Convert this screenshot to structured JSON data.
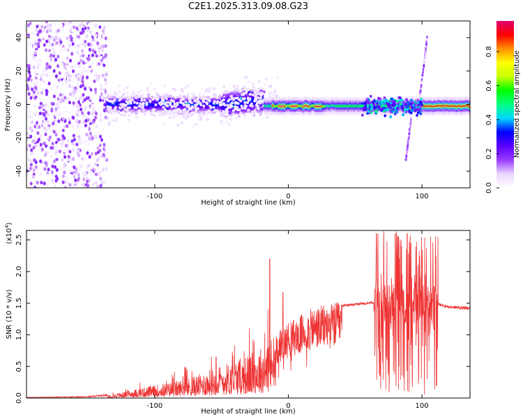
{
  "title": "C2E1.2025.313.09.08.G23",
  "chart_data": [
    {
      "type": "heatmap",
      "xlabel": "Height of straight line (km)",
      "ylabel": "Frequency (Hz)",
      "xlim": [
        -196,
        136
      ],
      "ylim": [
        -50,
        50
      ],
      "x_ticks": [
        -100,
        0,
        100
      ],
      "y_ticks": [
        -40,
        -20,
        0,
        20,
        40
      ],
      "colorbar": {
        "label": "Normalized spectral amplitude",
        "range": [
          0.0,
          0.98
        ],
        "ticks": [
          0.0,
          0.2,
          0.4,
          0.6,
          0.8
        ],
        "colors": [
          "#ffffff",
          "#ead6ff",
          "#9a3cff",
          "#5a00ff",
          "#0000ff",
          "#00d8ff",
          "#00ff80",
          "#00ff00",
          "#c8ff00",
          "#ffff00",
          "#ff9000",
          "#ff0000",
          "#e00070"
        ]
      },
      "features": [
        {
          "name": "noise-region",
          "x_range": [
            -196,
            -136
          ],
          "freq_range": [
            -50,
            50
          ],
          "amplitude": [
            0.0,
            0.2
          ]
        },
        {
          "name": "broadening-band",
          "x_range": [
            -136,
            -18
          ],
          "freq_range": [
            -12,
            12
          ],
          "amplitude": [
            0.1,
            0.4
          ]
        },
        {
          "name": "stable-tone",
          "x_range": [
            -18,
            136
          ],
          "center_freq": -1,
          "amplitude": [
            0.4,
            0.98
          ]
        },
        {
          "name": "spur",
          "x_range": [
            88,
            104
          ],
          "freq_range": [
            -33,
            40
          ],
          "amplitude": [
            0.05,
            0.2
          ]
        }
      ]
    },
    {
      "type": "line",
      "xlabel": "Height of straight line (km)",
      "ylabel": "SNR (10 * v/v)",
      "y_scale_label": "(x10",
      "y_scale_exp": "4",
      "xlim": [
        -196,
        136
      ],
      "ylim": [
        0.0,
        2.65
      ],
      "x_ticks": [
        -100,
        0,
        100
      ],
      "y_ticks": [
        0.0,
        0.5,
        1.0,
        1.5,
        2.0,
        2.5
      ],
      "color": "#ee3333",
      "envelope": {
        "x": [
          -196,
          -150,
          -130,
          -110,
          -90,
          -70,
          -50,
          -30,
          -20,
          -10,
          0,
          20,
          40,
          60,
          65,
          70,
          80,
          90,
          100,
          110,
          120,
          136
        ],
        "y": [
          0.01,
          0.02,
          0.06,
          0.15,
          0.22,
          0.32,
          0.48,
          0.62,
          0.75,
          0.95,
          1.15,
          1.38,
          1.46,
          1.5,
          1.52,
          1.5,
          1.5,
          1.5,
          1.5,
          1.5,
          1.44,
          1.42
        ]
      },
      "peaks": [
        {
          "x": -54,
          "y": 0.65
        },
        {
          "x": -14,
          "y": 2.2
        },
        {
          "x": -12,
          "y": 0.55
        },
        {
          "x": -4,
          "y": 1.67
        },
        {
          "x": 8,
          "y": 0.72
        },
        {
          "x": 66,
          "y": 2.6
        },
        {
          "x": 80,
          "y": 2.6
        },
        {
          "x": 89,
          "y": 2.6
        }
      ]
    }
  ]
}
